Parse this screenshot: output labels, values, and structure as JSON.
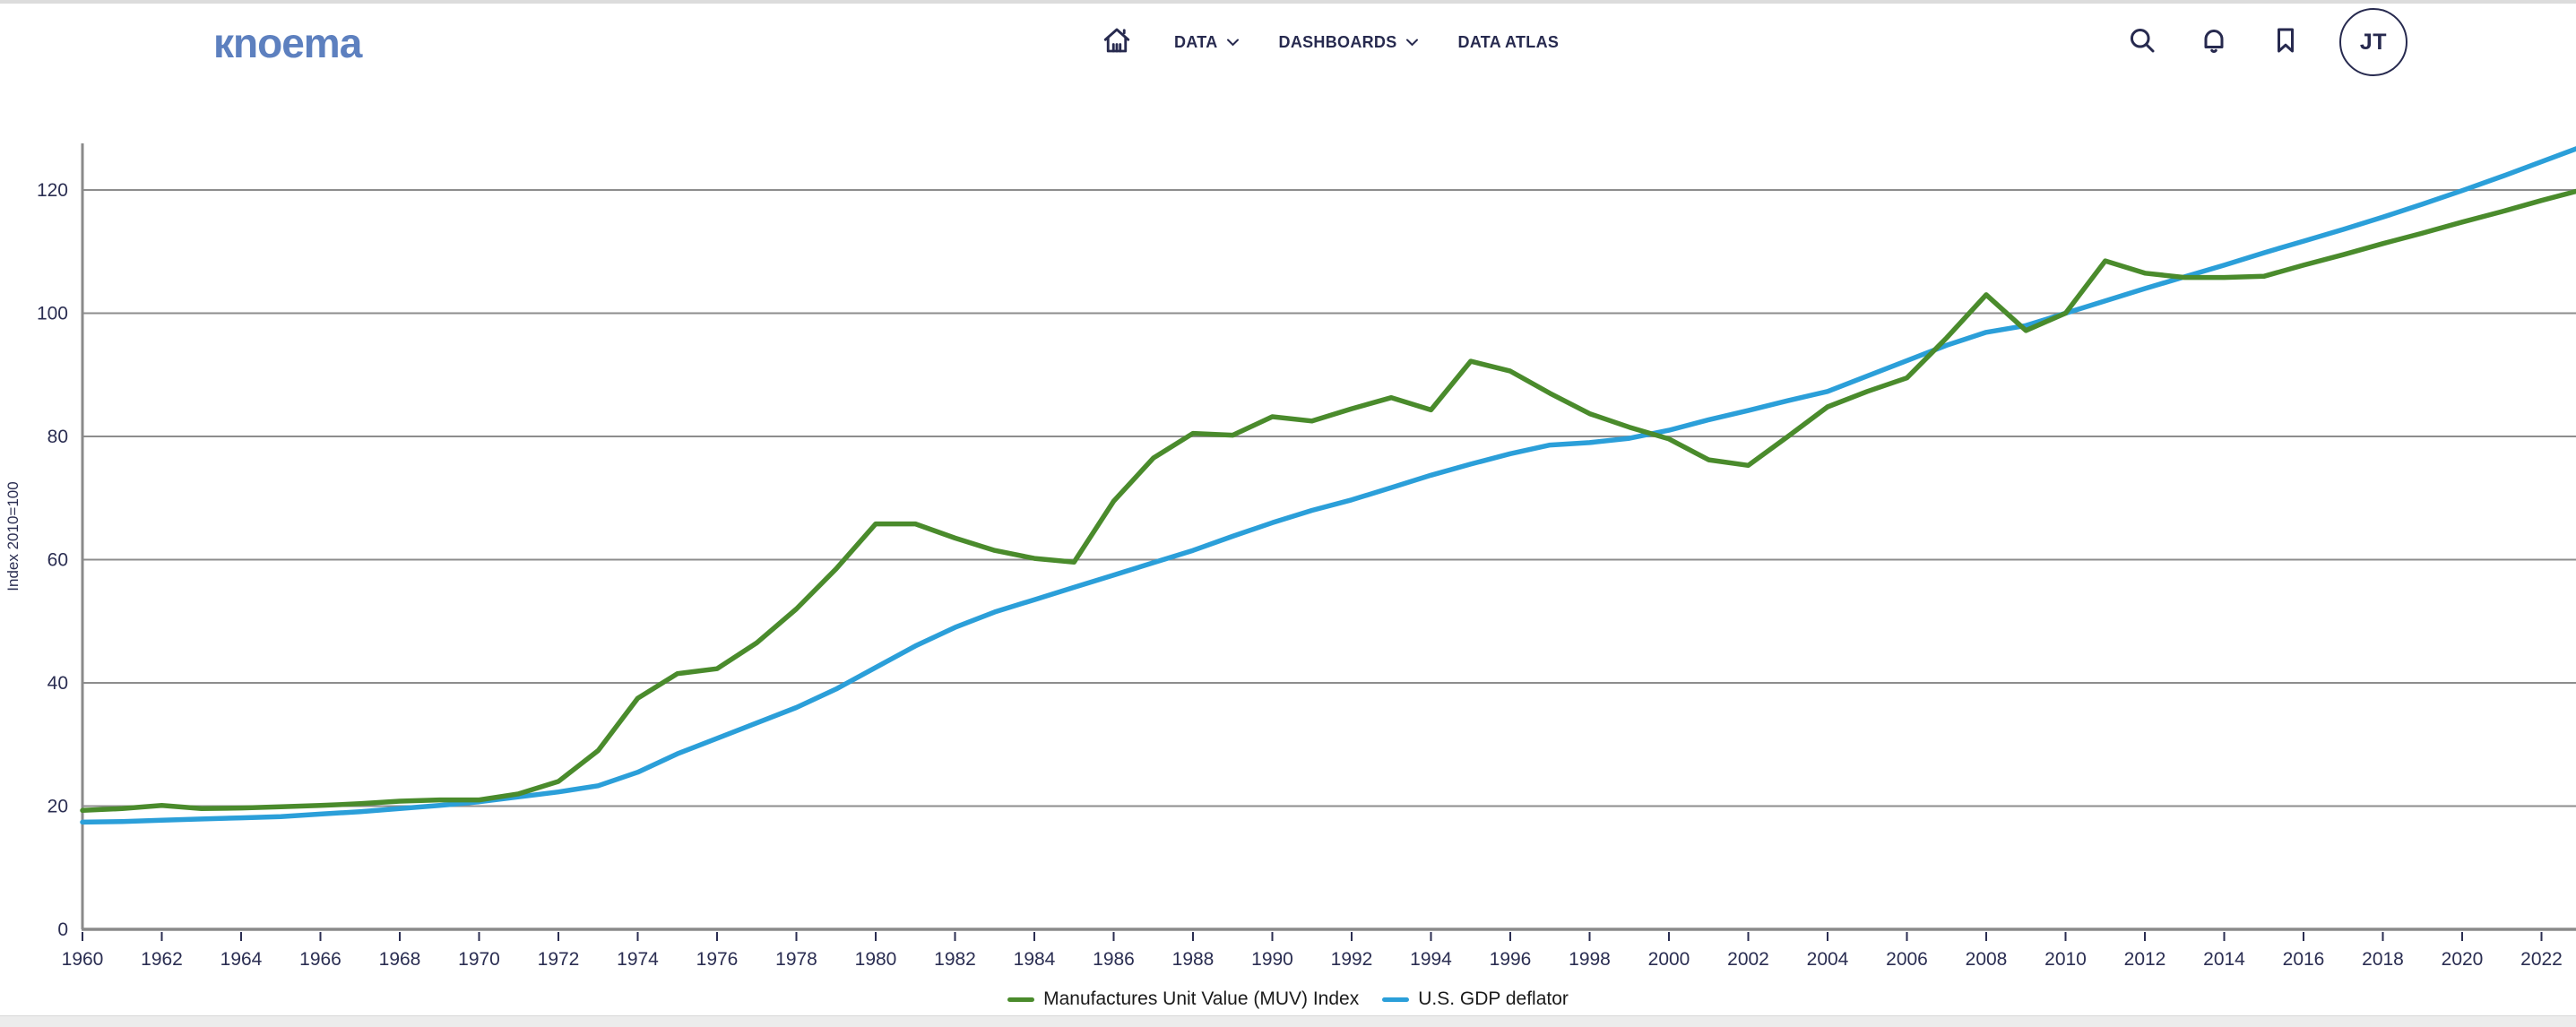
{
  "header": {
    "logo_text": "кnoema",
    "nav": [
      {
        "label": "DATA",
        "has_dropdown": true
      },
      {
        "label": "DASHBOARDS",
        "has_dropdown": true
      },
      {
        "label": "DATA ATLAS",
        "has_dropdown": false
      }
    ],
    "avatar_initials": "JT"
  },
  "colors": {
    "accent_logo": "#5d80bf",
    "nav_dark": "#272a4f",
    "gridline": "#8d8d8d",
    "axis": "#8a8a8a",
    "tick_text": "#2b2e52",
    "muv_green": "#4a8b2c",
    "deflator_blue": "#2b9fd9"
  },
  "chart_data": {
    "type": "line",
    "title": "",
    "xlabel": "",
    "ylabel": "Index 2010=100",
    "ylim": [
      0,
      132
    ],
    "grid": true,
    "legend_position": "bottom",
    "y_ticks": [
      0,
      20,
      40,
      60,
      80,
      100,
      120
    ],
    "x_ticks": [
      1960,
      1962,
      1964,
      1966,
      1968,
      1970,
      1972,
      1974,
      1976,
      1978,
      1980,
      1982,
      1984,
      1986,
      1988,
      1990,
      1992,
      1994,
      1996,
      1998,
      2000,
      2002,
      2004,
      2006,
      2008,
      2010,
      2012,
      2014,
      2016,
      2018,
      2020,
      2022
    ],
    "years": [
      1960,
      1961,
      1962,
      1963,
      1964,
      1965,
      1966,
      1967,
      1968,
      1969,
      1970,
      1971,
      1972,
      1973,
      1974,
      1975,
      1976,
      1977,
      1978,
      1979,
      1980,
      1981,
      1982,
      1983,
      1984,
      1985,
      1986,
      1987,
      1988,
      1989,
      1990,
      1991,
      1992,
      1993,
      1994,
      1995,
      1996,
      1997,
      1998,
      1999,
      2000,
      2001,
      2002,
      2003,
      2004,
      2005,
      2006,
      2007,
      2008,
      2009,
      2010,
      2011,
      2012,
      2013,
      2014,
      2015,
      2016,
      2017,
      2018,
      2019,
      2020,
      2021,
      2022,
      2023
    ],
    "series": [
      {
        "name": "Manufactures Unit Value (MUV) Index",
        "color": "#4a8b2c",
        "values": [
          19.3,
          19.6,
          20.1,
          19.6,
          19.7,
          19.9,
          20.1,
          20.4,
          20.8,
          21.0,
          21.0,
          22.0,
          24.0,
          29.0,
          37.5,
          41.5,
          42.3,
          46.5,
          52.0,
          58.5,
          65.8,
          65.8,
          63.5,
          61.5,
          60.2,
          59.6,
          69.5,
          76.5,
          80.5,
          80.2,
          83.2,
          82.5,
          84.5,
          86.3,
          84.3,
          92.2,
          90.6,
          87.0,
          83.7,
          81.5,
          79.6,
          76.2,
          75.3,
          80.0,
          84.8,
          87.3,
          89.5,
          96.0,
          103.0,
          97.2,
          100.0,
          108.5,
          106.5,
          105.8,
          105.8,
          106.0,
          107.8,
          109.5,
          111.3,
          113.0,
          114.8,
          116.5,
          118.3,
          120.0
        ]
      },
      {
        "name": "U.S. GDP deflator",
        "color": "#2b9fd9",
        "values": [
          17.4,
          17.5,
          17.7,
          17.9,
          18.1,
          18.3,
          18.7,
          19.1,
          19.6,
          20.1,
          20.7,
          21.5,
          22.3,
          23.3,
          25.5,
          28.5,
          31.0,
          33.5,
          36.0,
          39.0,
          42.5,
          46.0,
          49.0,
          51.5,
          53.5,
          55.5,
          57.5,
          59.5,
          61.5,
          63.8,
          66.0,
          68.0,
          69.7,
          71.7,
          73.7,
          75.5,
          77.2,
          78.6,
          79.0,
          79.7,
          81.0,
          82.7,
          84.2,
          85.8,
          87.3,
          89.8,
          92.3,
          94.8,
          96.9,
          98.0,
          100.0,
          102.0,
          104.0,
          105.9,
          107.8,
          109.8,
          111.7,
          113.6,
          115.6,
          117.7,
          119.9,
          122.2,
          124.6,
          127.0
        ]
      }
    ]
  }
}
